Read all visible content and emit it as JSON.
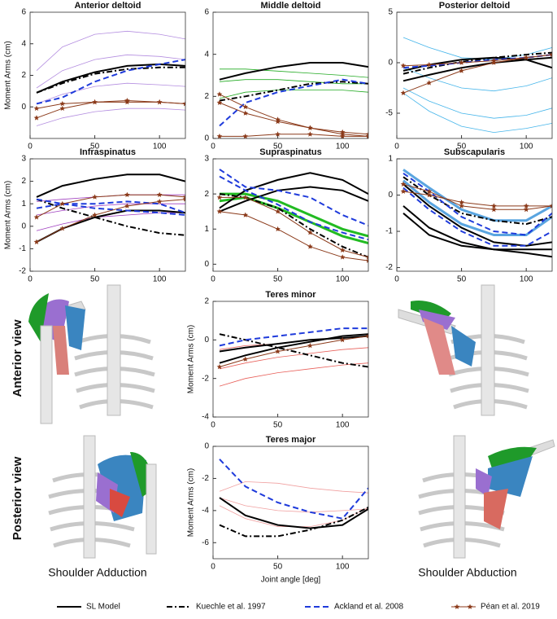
{
  "chart_data": [
    {
      "type": "line",
      "title": "Anterior deltoid",
      "ylabel": "Moment Arms (cm)",
      "x": [
        5,
        25,
        50,
        75,
        100,
        120
      ],
      "xlim": [
        0,
        120
      ],
      "xticks": [
        0,
        50,
        100
      ],
      "ylim": [
        -2,
        6
      ],
      "yticks": [
        0,
        2,
        4,
        6
      ],
      "series": [
        {
          "color": "#b48ee0",
          "width": 0.8,
          "values": [
            2.3,
            3.8,
            4.6,
            4.8,
            4.6,
            4.3
          ]
        },
        {
          "color": "#b48ee0",
          "width": 0.8,
          "values": [
            1.2,
            2.3,
            3.0,
            3.3,
            3.2,
            3.0
          ]
        },
        {
          "color": "#b48ee0",
          "width": 0.8,
          "values": [
            0.2,
            0.8,
            1.3,
            1.5,
            1.4,
            1.3
          ]
        },
        {
          "color": "#b48ee0",
          "width": 0.8,
          "values": [
            -1.2,
            -0.7,
            -0.3,
            -0.1,
            -0.1,
            -0.2
          ]
        },
        {
          "color": "#000000",
          "width": 2,
          "values": [
            0.9,
            1.6,
            2.2,
            2.6,
            2.7,
            2.6
          ]
        },
        {
          "color": "#000000",
          "width": 2,
          "dash": "7 3 2 3",
          "values": [
            0.9,
            1.5,
            2.1,
            2.4,
            2.5,
            2.5
          ]
        },
        {
          "color": "#1f3bdb",
          "width": 2,
          "dash": "7 4",
          "values": [
            0.2,
            0.6,
            1.6,
            2.3,
            2.7,
            3.0
          ]
        },
        {
          "color": "#8b3a1a",
          "width": 1,
          "marker": "star",
          "values": [
            -0.7,
            -0.1,
            0.3,
            0.4,
            0.3,
            0.2
          ]
        },
        {
          "color": "#8b3a1a",
          "width": 1,
          "marker": "star",
          "values": [
            -0.1,
            0.2,
            0.3,
            0.3,
            0.3,
            0.2
          ]
        }
      ]
    },
    {
      "type": "line",
      "title": "Middle deltoid",
      "x": [
        5,
        25,
        50,
        75,
        100,
        120
      ],
      "xlim": [
        0,
        120
      ],
      "xticks": [
        0,
        50,
        100
      ],
      "ylim": [
        0,
        6
      ],
      "yticks": [
        0,
        2,
        4,
        6
      ],
      "series": [
        {
          "color": "#22aa22",
          "width": 0.8,
          "values": [
            3.3,
            3.3,
            3.2,
            3.1,
            3.0,
            2.9
          ]
        },
        {
          "color": "#22aa22",
          "width": 0.8,
          "values": [
            2.7,
            2.8,
            2.8,
            2.7,
            2.6,
            2.6
          ]
        },
        {
          "color": "#22aa22",
          "width": 0.8,
          "values": [
            1.9,
            2.2,
            2.3,
            2.3,
            2.3,
            2.2
          ]
        },
        {
          "color": "#000000",
          "width": 2,
          "values": [
            2.8,
            3.1,
            3.4,
            3.6,
            3.6,
            3.4
          ]
        },
        {
          "color": "#000000",
          "width": 2,
          "dash": "7 3 2 3",
          "values": [
            1.8,
            2.0,
            2.3,
            2.6,
            2.7,
            2.6
          ]
        },
        {
          "color": "#1f3bdb",
          "width": 2,
          "dash": "7 4",
          "values": [
            0.6,
            1.7,
            2.2,
            2.5,
            2.8,
            2.6
          ]
        },
        {
          "color": "#8b3a1a",
          "width": 1,
          "marker": "star",
          "values": [
            2.1,
            1.5,
            0.9,
            0.5,
            0.2,
            0.1
          ]
        },
        {
          "color": "#8b3a1a",
          "width": 1,
          "marker": "star",
          "values": [
            1.7,
            1.2,
            0.8,
            0.5,
            0.3,
            0.2
          ]
        },
        {
          "color": "#8b3a1a",
          "width": 1,
          "marker": "star",
          "values": [
            0.1,
            0.1,
            0.2,
            0.2,
            0.1,
            0.1
          ]
        }
      ]
    },
    {
      "type": "line",
      "title": "Posterior deltoid",
      "x": [
        5,
        25,
        50,
        75,
        100,
        120
      ],
      "xlim": [
        0,
        120
      ],
      "xticks": [
        0,
        50,
        100
      ],
      "ylim": [
        -7.5,
        5
      ],
      "yticks": [
        -5,
        0,
        5
      ],
      "series": [
        {
          "color": "#45b5ea",
          "width": 0.8,
          "values": [
            2.5,
            1.5,
            0.5,
            0.3,
            0.8,
            1.5
          ]
        },
        {
          "color": "#45b5ea",
          "width": 0.8,
          "values": [
            -0.5,
            -1.5,
            -2.5,
            -2.8,
            -2.3,
            -1.5
          ]
        },
        {
          "color": "#45b5ea",
          "width": 0.8,
          "values": [
            -2.5,
            -3.8,
            -5,
            -5.5,
            -5.2,
            -4.5
          ]
        },
        {
          "color": "#45b5ea",
          "width": 0.8,
          "values": [
            -3,
            -4.8,
            -6.3,
            -6.9,
            -6.5,
            -6
          ]
        },
        {
          "color": "#000000",
          "width": 2,
          "values": [
            -1.8,
            -1.2,
            -0.5,
            0,
            0.3,
            0.5
          ]
        },
        {
          "color": "#000000",
          "width": 2,
          "values": [
            -0.8,
            -0.2,
            0.3,
            0.5,
            0.3,
            -0.5
          ]
        },
        {
          "color": "#000000",
          "width": 2,
          "dash": "7 3 2 3",
          "values": [
            -1.1,
            -0.5,
            0.1,
            0.5,
            0.8,
            1
          ]
        },
        {
          "color": "#1f3bdb",
          "width": 2,
          "dash": "7 4",
          "values": [
            -0.5,
            -0.3,
            0,
            0.3,
            0.5,
            0.8
          ]
        },
        {
          "color": "#8b3a1a",
          "width": 1,
          "marker": "star",
          "values": [
            -0.3,
            -0.2,
            0,
            0.2,
            0.5,
            0.8
          ]
        },
        {
          "color": "#8b3a1a",
          "width": 1,
          "marker": "star",
          "values": [
            -3,
            -2,
            -0.8,
            0,
            0.5,
            0.8
          ]
        }
      ]
    },
    {
      "type": "line",
      "title": "Infraspinatus",
      "ylabel": "Moment Arms (cm)",
      "x": [
        5,
        25,
        50,
        75,
        100,
        120
      ],
      "xlim": [
        0,
        120
      ],
      "xticks": [
        0,
        50,
        100
      ],
      "ylim": [
        -2,
        3
      ],
      "yticks": [
        -2,
        -1,
        0,
        1,
        2,
        3
      ],
      "series": [
        {
          "color": "#a040c0",
          "width": 0.8,
          "values": [
            1.1,
            1.2,
            1.3,
            1.4,
            1.4,
            1.4
          ]
        },
        {
          "color": "#a040c0",
          "width": 0.8,
          "values": [
            0.5,
            0.7,
            0.9,
            1.0,
            1.0,
            1.0
          ]
        },
        {
          "color": "#a040c0",
          "width": 0.8,
          "values": [
            -0.2,
            0.1,
            0.4,
            0.5,
            0.6,
            0.6
          ]
        },
        {
          "color": "#000000",
          "width": 2,
          "values": [
            1.3,
            1.8,
            2.1,
            2.3,
            2.3,
            2.0
          ]
        },
        {
          "color": "#000000",
          "width": 2,
          "values": [
            -0.7,
            -0.1,
            0.4,
            0.7,
            0.7,
            0.6
          ]
        },
        {
          "color": "#000000",
          "width": 2,
          "dash": "7 3 2 3",
          "values": [
            1.2,
            0.8,
            0.4,
            0.0,
            -0.3,
            -0.4
          ]
        },
        {
          "color": "#1f3bdb",
          "width": 2,
          "dash": "7 4",
          "values": [
            0.8,
            1.0,
            1.0,
            1.1,
            1.0,
            0.6
          ]
        },
        {
          "color": "#1f3bdb",
          "width": 2,
          "dash": "7 4",
          "values": [
            1.2,
            1.0,
            0.8,
            0.7,
            0.6,
            0.5
          ]
        },
        {
          "color": "#8b3a1a",
          "width": 1,
          "marker": "star",
          "values": [
            0.4,
            1.0,
            1.3,
            1.4,
            1.4,
            1.3
          ]
        },
        {
          "color": "#8b3a1a",
          "width": 1,
          "marker": "star",
          "values": [
            -0.7,
            -0.1,
            0.5,
            0.9,
            1.1,
            1.2
          ]
        }
      ]
    },
    {
      "type": "line",
      "title": "Supraspinatus",
      "x": [
        5,
        25,
        50,
        75,
        100,
        120
      ],
      "xlim": [
        0,
        120
      ],
      "xticks": [
        0,
        50,
        100
      ],
      "ylim": [
        -0.2,
        3
      ],
      "yticks": [
        0,
        1,
        2,
        3
      ],
      "series": [
        {
          "color": "#22bb22",
          "width": 3,
          "values": [
            2.0,
            2.0,
            1.8,
            1.4,
            1.0,
            0.8
          ]
        },
        {
          "color": "#22bb22",
          "width": 3,
          "values": [
            1.8,
            1.9,
            1.6,
            1.2,
            0.8,
            0.6
          ]
        },
        {
          "color": "#000000",
          "width": 2,
          "values": [
            1.6,
            2.1,
            2.4,
            2.6,
            2.4,
            2.0
          ]
        },
        {
          "color": "#000000",
          "width": 2,
          "values": [
            1.5,
            1.8,
            2.1,
            2.2,
            2.1,
            1.8
          ]
        },
        {
          "color": "#000000",
          "width": 2,
          "dash": "7 3 2 3",
          "values": [
            2.0,
            1.9,
            1.6,
            1.0,
            0.5,
            0.2
          ]
        },
        {
          "color": "#1f3bdb",
          "width": 2,
          "dash": "7 4",
          "values": [
            2.7,
            2.2,
            2.1,
            1.9,
            1.4,
            1.1
          ]
        },
        {
          "color": "#1f3bdb",
          "width": 2,
          "dash": "7 4",
          "values": [
            2.5,
            2.1,
            1.7,
            1.2,
            0.9,
            0.7
          ]
        },
        {
          "color": "#8b3a1a",
          "width": 1,
          "marker": "star",
          "values": [
            1.9,
            1.9,
            1.5,
            0.9,
            0.4,
            0.2
          ]
        },
        {
          "color": "#8b3a1a",
          "width": 1,
          "marker": "star",
          "values": [
            1.5,
            1.4,
            1.0,
            0.5,
            0.2,
            0.1
          ]
        }
      ]
    },
    {
      "type": "line",
      "title": "Subscapularis",
      "x": [
        5,
        25,
        50,
        75,
        100,
        120
      ],
      "xlim": [
        0,
        120
      ],
      "xticks": [
        0,
        50,
        100
      ],
      "ylim": [
        -2.1,
        1
      ],
      "yticks": [
        -2,
        -1,
        0,
        1
      ],
      "series": [
        {
          "color": "#5aa5e0",
          "width": 3,
          "values": [
            0.7,
            0.2,
            -0.4,
            -0.7,
            -0.7,
            -0.3
          ]
        },
        {
          "color": "#5aa5e0",
          "width": 3,
          "values": [
            0.4,
            -0.2,
            -0.8,
            -1.1,
            -1.1,
            -0.6
          ]
        },
        {
          "color": "#000000",
          "width": 2,
          "values": [
            0.3,
            -0.3,
            -0.9,
            -1.3,
            -1.4,
            -1.3
          ]
        },
        {
          "color": "#000000",
          "width": 2,
          "values": [
            -0.3,
            -0.9,
            -1.3,
            -1.5,
            -1.6,
            -1.7
          ]
        },
        {
          "color": "#000000",
          "width": 2,
          "values": [
            -0.5,
            -1.1,
            -1.4,
            -1.5,
            -1.5,
            -1.5
          ]
        },
        {
          "color": "#000000",
          "width": 2,
          "dash": "7 3 2 3",
          "values": [
            0.5,
            0.0,
            -0.5,
            -0.7,
            -0.8,
            -0.6
          ]
        },
        {
          "color": "#1f3bdb",
          "width": 2,
          "dash": "7 4",
          "values": [
            0.6,
            0.1,
            -0.6,
            -1.0,
            -1.1,
            -0.5
          ]
        },
        {
          "color": "#1f3bdb",
          "width": 2,
          "dash": "7 4",
          "values": [
            0.2,
            -0.4,
            -1.0,
            -1.4,
            -1.4,
            -1.0
          ]
        },
        {
          "color": "#8b3a1a",
          "width": 1,
          "marker": "star",
          "values": [
            0.1,
            0.0,
            -0.2,
            -0.3,
            -0.3,
            -0.3
          ]
        },
        {
          "color": "#8b3a1a",
          "width": 1,
          "marker": "star",
          "values": [
            0.3,
            0.1,
            -0.3,
            -0.4,
            -0.4,
            -0.3
          ]
        }
      ]
    },
    {
      "type": "line",
      "title": "Teres minor",
      "ylabel": "Moment Arms (cm)",
      "x": [
        5,
        25,
        50,
        75,
        100,
        120
      ],
      "xlim": [
        0,
        120
      ],
      "xticks": [
        0,
        50,
        100
      ],
      "ylim": [
        -4,
        2
      ],
      "yticks": [
        -4,
        -2,
        0,
        2
      ],
      "series": [
        {
          "color": "#e8605a",
          "width": 0.8,
          "values": [
            -0.5,
            -0.3,
            -0.2,
            0,
            0.1,
            0.2
          ]
        },
        {
          "color": "#e8605a",
          "width": 0.8,
          "values": [
            -1.5,
            -1.2,
            -0.9,
            -0.7,
            -0.5,
            -0.4
          ]
        },
        {
          "color": "#e8605a",
          "width": 0.8,
          "values": [
            -2.4,
            -2.0,
            -1.7,
            -1.5,
            -1.3,
            -1.2
          ]
        },
        {
          "color": "#000000",
          "width": 2,
          "values": [
            -1.2,
            -0.8,
            -0.4,
            -0.1,
            0.2,
            0.3
          ]
        },
        {
          "color": "#000000",
          "width": 2,
          "values": [
            -0.6,
            -0.4,
            -0.2,
            0.0,
            0.1,
            0.2
          ]
        },
        {
          "color": "#000000",
          "width": 2,
          "dash": "7 3 2 3",
          "values": [
            0.3,
            0,
            -0.4,
            -0.8,
            -1.2,
            -1.4
          ]
        },
        {
          "color": "#1f3bdb",
          "width": 2,
          "dash": "7 4",
          "values": [
            -0.3,
            0.0,
            0.2,
            0.4,
            0.6,
            0.6
          ]
        },
        {
          "color": "#8b3a1a",
          "width": 1,
          "marker": "star",
          "values": [
            -1.4,
            -1.0,
            -0.6,
            -0.3,
            0.0,
            0.2
          ]
        }
      ]
    },
    {
      "type": "line",
      "title": "Teres major",
      "ylabel": "Moment Arms (cm)",
      "xlabel": "Joint angle [deg]",
      "x": [
        5,
        25,
        50,
        75,
        100,
        120
      ],
      "xlim": [
        0,
        120
      ],
      "xticks": [
        0,
        50,
        100
      ],
      "ylim": [
        -7,
        0
      ],
      "yticks": [
        -6,
        -4,
        -2,
        0
      ],
      "series": [
        {
          "color": "#f0a0a0",
          "width": 0.8,
          "values": [
            -2.8,
            -2.2,
            -2.3,
            -2.6,
            -2.8,
            -2.9
          ]
        },
        {
          "color": "#f0a0a0",
          "width": 0.8,
          "values": [
            -3.2,
            -3.7,
            -4.0,
            -4.1,
            -4.0,
            -3.9
          ]
        },
        {
          "color": "#f0a0a0",
          "width": 0.8,
          "values": [
            -3.7,
            -4.5,
            -5.0,
            -5.0,
            -4.6,
            -3.8
          ]
        },
        {
          "color": "#000000",
          "width": 2,
          "values": [
            -3.2,
            -4.3,
            -4.9,
            -5.1,
            -4.9,
            -3.9
          ]
        },
        {
          "color": "#000000",
          "width": 2,
          "dash": "7 3 2 3",
          "values": [
            -4.9,
            -5.6,
            -5.6,
            -5.2,
            -4.6,
            -3.8
          ]
        },
        {
          "color": "#1f3bdb",
          "width": 2,
          "dash": "7 4",
          "values": [
            -0.8,
            -2.5,
            -3.5,
            -4.1,
            -4.5,
            -2.6
          ]
        }
      ]
    }
  ],
  "legend": [
    {
      "name": "SL Model",
      "color": "#000000"
    },
    {
      "name": "Kuechle et al. 1997",
      "color": "#000000",
      "dash": "7 3 2 3"
    },
    {
      "name": "Ackland et al. 2008",
      "color": "#1f3bdb",
      "dash": "7 4"
    },
    {
      "name": "Péan et al. 2019",
      "color": "#8b3a1a",
      "marker": "star"
    }
  ],
  "panels": {
    "view_labels": [
      "Anterior view",
      "Posterior view"
    ],
    "captions": [
      "Shoulder Adduction",
      "Shoulder Abduction"
    ]
  }
}
